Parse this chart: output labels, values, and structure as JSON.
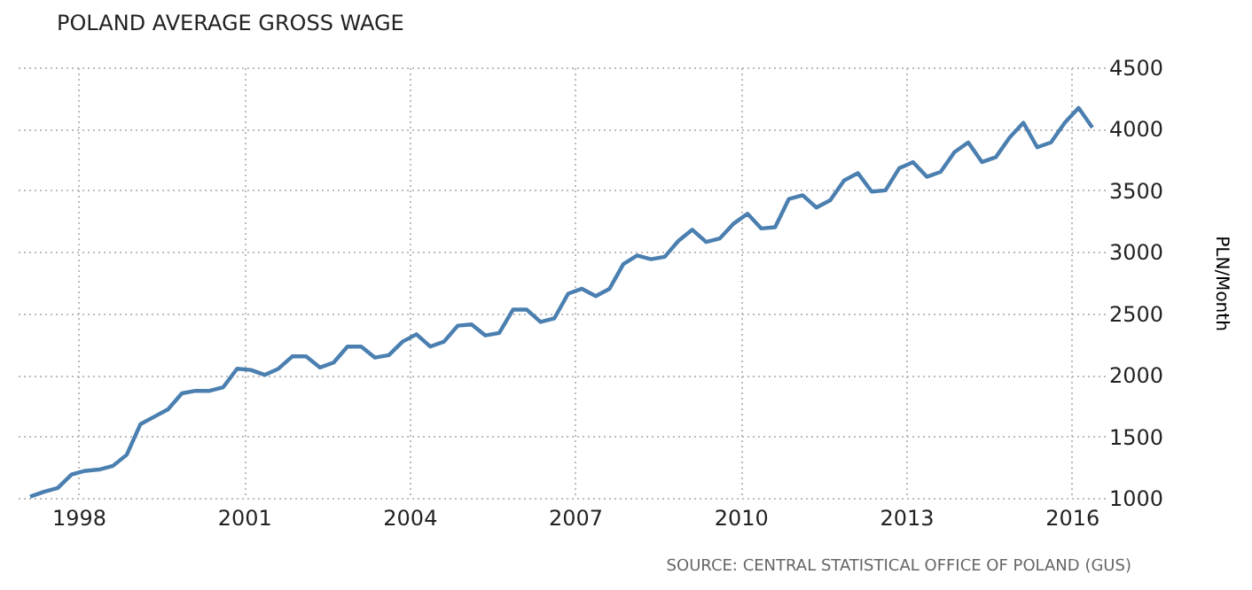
{
  "chart_data": {
    "type": "line",
    "title": "POLAND AVERAGE GROSS WAGE",
    "ylabel": "PLN/Month",
    "annotations": [
      "SOURCE: CENTRAL STATISTICAL OFFICE OF POLAND (GUS)"
    ],
    "x": [
      1997.125,
      1997.375,
      1997.625,
      1997.875,
      1998.125,
      1998.375,
      1998.625,
      1998.875,
      1999.125,
      1999.375,
      1999.625,
      1999.875,
      2000.125,
      2000.375,
      2000.625,
      2000.875,
      2001.125,
      2001.375,
      2001.625,
      2001.875,
      2002.125,
      2002.375,
      2002.625,
      2002.875,
      2003.125,
      2003.375,
      2003.625,
      2003.875,
      2004.125,
      2004.375,
      2004.625,
      2004.875,
      2005.125,
      2005.375,
      2005.625,
      2005.875,
      2006.125,
      2006.375,
      2006.625,
      2006.875,
      2007.125,
      2007.375,
      2007.625,
      2007.875,
      2008.125,
      2008.375,
      2008.625,
      2008.875,
      2009.125,
      2009.375,
      2009.625,
      2009.875,
      2010.125,
      2010.375,
      2010.625,
      2010.875,
      2011.125,
      2011.375,
      2011.625,
      2011.875,
      2012.125,
      2012.375,
      2012.625,
      2012.875,
      2013.125,
      2013.375,
      2013.625,
      2013.875,
      2014.125,
      2014.375,
      2014.625,
      2014.875,
      2015.125,
      2015.375,
      2015.625,
      2015.875,
      2016.125,
      2016.375
    ],
    "series": [
      {
        "color": "#4a7fb0",
        "values": [
          1010,
          1050,
          1080,
          1190,
          1220,
          1230,
          1260,
          1350,
          1600,
          1660,
          1720,
          1850,
          1870,
          1870,
          1900,
          2050,
          2040,
          2000,
          2050,
          2150,
          2150,
          2060,
          2100,
          2230,
          2230,
          2140,
          2160,
          2270,
          2330,
          2230,
          2270,
          2400,
          2410,
          2320,
          2340,
          2530,
          2530,
          2430,
          2460,
          2660,
          2700,
          2640,
          2700,
          2900,
          2970,
          2940,
          2960,
          3090,
          3180,
          3080,
          3110,
          3230,
          3310,
          3190,
          3200,
          3430,
          3460,
          3360,
          3420,
          3580,
          3640,
          3490,
          3500,
          3680,
          3730,
          3610,
          3650,
          3810,
          3890,
          3730,
          3770,
          3930,
          4050,
          3850,
          3890,
          4050,
          4170,
          4010
        ]
      }
    ],
    "xlim": [
      1996.9,
      2016.6
    ],
    "xticks": [
      1998,
      2001,
      2004,
      2007,
      2010,
      2013,
      2016
    ],
    "ylim": [
      1000,
      4500
    ],
    "yticks": [
      1000,
      1500,
      2000,
      2500,
      3000,
      3500,
      4000,
      4500
    ],
    "grid": true,
    "legend": false,
    "marker": "none",
    "line_style": "solid"
  }
}
